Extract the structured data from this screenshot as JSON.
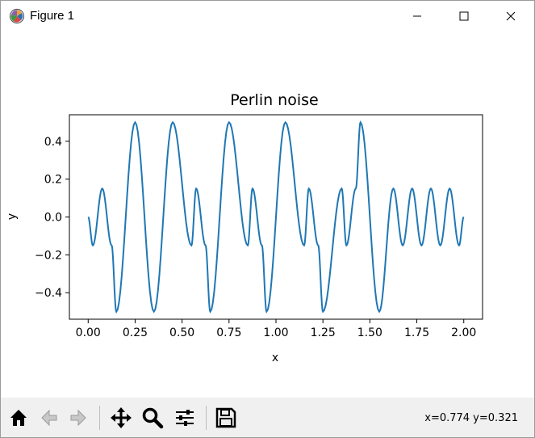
{
  "window": {
    "title": "Figure 1",
    "app_icon": "matplotlib-icon",
    "controls": [
      "minimize-icon",
      "maximize-icon",
      "close-icon"
    ]
  },
  "toolbar": {
    "buttons": [
      "home-icon",
      "back-icon",
      "forward-icon",
      "pan-icon",
      "zoom-icon",
      "configure-subplots-icon",
      "save-icon"
    ],
    "coords": "x=0.774 y=0.321"
  },
  "chart_data": {
    "type": "line",
    "title": "Perlin noise",
    "xlabel": "x",
    "ylabel": "y",
    "xlim": [
      -0.1,
      2.1
    ],
    "ylim": [
      -0.54,
      0.54
    ],
    "xticks": [
      "0.00",
      "0.25",
      "0.50",
      "0.75",
      "1.00",
      "1.25",
      "1.50",
      "1.75",
      "2.00"
    ],
    "yticks": [
      "−0.4",
      "−0.2",
      "0.0",
      "0.2",
      "0.4"
    ],
    "grid": false,
    "series": [
      {
        "color": "#1f77b4",
        "x": [
          0.0,
          0.025,
          0.075,
          0.125,
          0.15,
          0.25,
          0.35,
          0.45,
          0.55,
          0.575,
          0.625,
          0.65,
          0.75,
          0.85,
          0.875,
          0.925,
          0.95,
          1.05,
          1.15,
          1.175,
          1.225,
          1.25,
          1.35,
          1.375,
          1.425,
          1.45,
          1.55,
          1.625,
          1.675,
          1.725,
          1.775,
          1.825,
          1.875,
          1.925,
          1.975,
          2.0
        ],
        "y": [
          0.0,
          -0.15,
          0.15,
          -0.15,
          -0.5,
          0.5,
          -0.5,
          0.5,
          -0.15,
          0.15,
          -0.15,
          -0.5,
          0.5,
          -0.15,
          0.15,
          -0.15,
          -0.5,
          0.5,
          -0.15,
          0.15,
          -0.15,
          -0.5,
          0.15,
          -0.15,
          0.15,
          0.5,
          -0.5,
          0.15,
          -0.15,
          0.15,
          -0.15,
          0.15,
          -0.15,
          0.15,
          -0.15,
          0.0
        ]
      }
    ]
  }
}
